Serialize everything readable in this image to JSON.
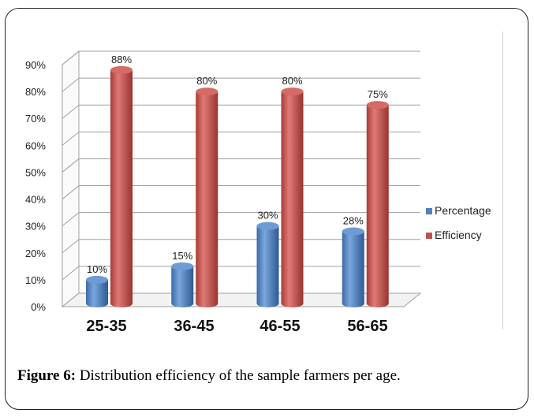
{
  "chart_data": {
    "type": "bar",
    "categories": [
      "25-35",
      "36-45",
      "46-55",
      "56-65"
    ],
    "series": [
      {
        "name": "Percentage",
        "values": [
          10,
          15,
          30,
          28
        ],
        "labels": [
          "10%",
          "15%",
          "30%",
          "28%"
        ],
        "color": "#4f81bd"
      },
      {
        "name": "Efficiency",
        "values": [
          88,
          80,
          80,
          75
        ],
        "labels": [
          "88%",
          "80%",
          "80%",
          "75%"
        ],
        "color": "#c0504d"
      }
    ],
    "ylim": [
      0,
      90
    ],
    "yticks": [
      "0%",
      "10%",
      "20%",
      "30%",
      "40%",
      "50%",
      "60%",
      "70%",
      "80%",
      "90%"
    ],
    "grid": true,
    "legend": "right",
    "style": "3d-cylinder"
  },
  "caption": {
    "label": "Figure 6:",
    "text": " Distribution efficiency of the sample farmers per age."
  }
}
